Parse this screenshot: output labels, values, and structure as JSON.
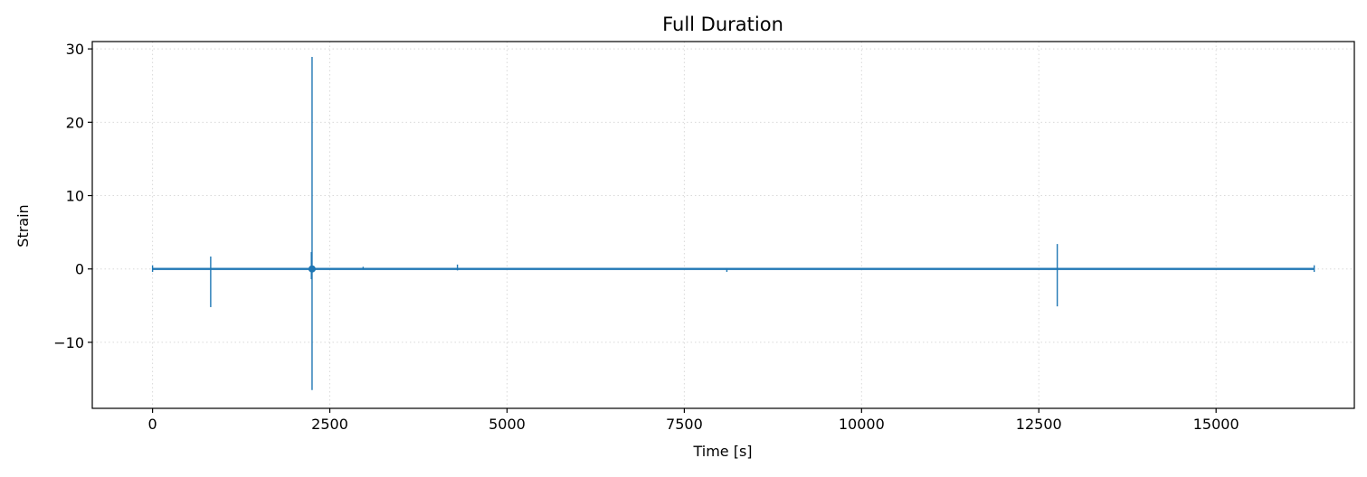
{
  "chart_data": {
    "type": "line",
    "title": "Full Duration",
    "xlabel": "Time [s]",
    "ylabel": "Strain",
    "xlim": [
      -850,
      16950
    ],
    "ylim": [
      -19,
      31
    ],
    "x_ticks": [
      0,
      2500,
      5000,
      7500,
      10000,
      12500,
      15000
    ],
    "x_tick_labels": [
      "0",
      "2500",
      "5000",
      "7500",
      "10000",
      "12500",
      "15000"
    ],
    "y_ticks": [
      -10,
      0,
      10,
      20,
      30
    ],
    "y_tick_labels": [
      "−10",
      "0",
      "10",
      "20",
      "30"
    ],
    "grid": true,
    "grid_style": "dotted",
    "legend": false,
    "line_color": "#1f77b4",
    "series": [
      {
        "baseline": {
          "x": [
            0,
            16384
          ],
          "y": [
            0,
            0
          ]
        },
        "spikes": [
          {
            "x": 0,
            "ymin": -0.4,
            "ymax": 0.5
          },
          {
            "x": 820,
            "ymin": -5.2,
            "ymax": 1.7
          },
          {
            "x": 2250,
            "ymin": -16.5,
            "ymax": 28.9
          },
          {
            "x": 2240,
            "ymin": -1.4,
            "ymax": 2.3
          },
          {
            "x": 2970,
            "ymin": -0.1,
            "ymax": 0.3
          },
          {
            "x": 4300,
            "ymin": -0.2,
            "ymax": 0.6
          },
          {
            "x": 8100,
            "ymin": -0.4,
            "ymax": 0.1
          },
          {
            "x": 12760,
            "ymin": -5.1,
            "ymax": 3.4
          },
          {
            "x": 16384,
            "ymin": -0.4,
            "ymax": 0.5
          }
        ],
        "markers": [
          {
            "x": 2250,
            "y": 0
          }
        ]
      }
    ]
  }
}
